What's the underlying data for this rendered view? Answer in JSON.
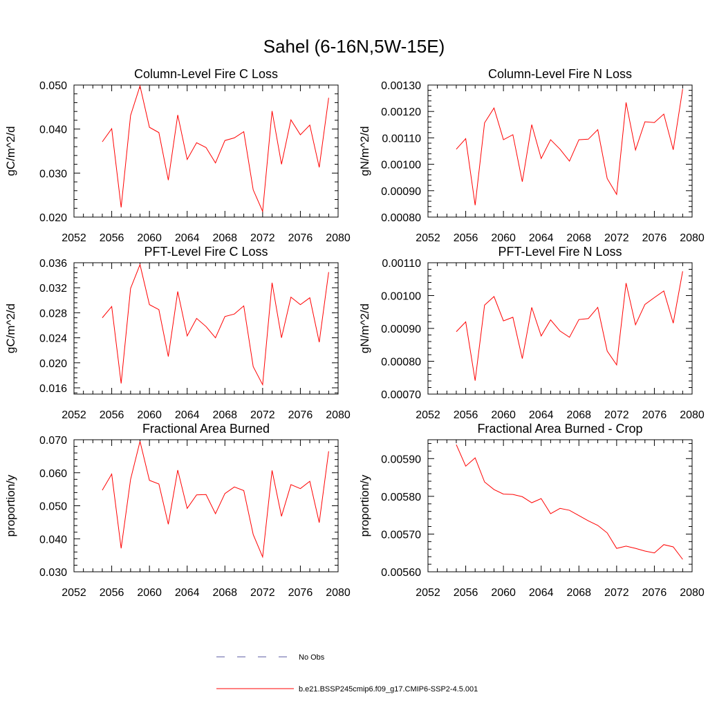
{
  "figure": {
    "title": "Sahel (6-16N,5W-15E)",
    "line_color": "#ff0000",
    "obs_color": "#5a5aa0"
  },
  "legend": {
    "items": [
      {
        "label": "No Obs",
        "style": "dashed",
        "color": "#5a5aa0"
      },
      {
        "label": "b.e21.BSSP245cmip6.f09_g17.CMIP6-SSP2-4.5.001",
        "style": "solid",
        "color": "#ff0000"
      }
    ]
  },
  "chart_data": [
    {
      "type": "line",
      "title": "Column-Level Fire C Loss",
      "ylabel": "gC/m^2/d",
      "xlim": [
        2052,
        2080
      ],
      "x_ticks": [
        "2052",
        "2056",
        "2060",
        "2064",
        "2068",
        "2072",
        "2076",
        "2080"
      ],
      "ylim": [
        0.02,
        0.05
      ],
      "y_ticks": [
        "0.020",
        "0.030",
        "0.040",
        "0.050"
      ],
      "x": [
        2055,
        2056,
        2057,
        2058,
        2059,
        2060,
        2061,
        2062,
        2063,
        2064,
        2065,
        2066,
        2067,
        2068,
        2069,
        2070,
        2071,
        2072,
        2073,
        2074,
        2075,
        2076,
        2077,
        2078,
        2079
      ],
      "series": [
        {
          "values": [
            0.0371,
            0.0401,
            0.0222,
            0.0431,
            0.0498,
            0.0404,
            0.0392,
            0.0284,
            0.0432,
            0.0331,
            0.0369,
            0.0358,
            0.0323,
            0.0374,
            0.038,
            0.0394,
            0.0262,
            0.0213,
            0.0441,
            0.032,
            0.0421,
            0.0387,
            0.0409,
            0.0313,
            0.0471
          ]
        }
      ]
    },
    {
      "type": "line",
      "title": "Column-Level Fire N Loss",
      "ylabel": "gN/m^2/d",
      "xlim": [
        2052,
        2080
      ],
      "x_ticks": [
        "2052",
        "2056",
        "2060",
        "2064",
        "2068",
        "2072",
        "2076",
        "2080"
      ],
      "ylim": [
        0.0008,
        0.0013
      ],
      "y_ticks": [
        "0.00080",
        "0.00090",
        "0.00100",
        "0.00110",
        "0.00120",
        "0.00130"
      ],
      "x": [
        2055,
        2056,
        2057,
        2058,
        2059,
        2060,
        2061,
        2062,
        2063,
        2064,
        2065,
        2066,
        2067,
        2068,
        2069,
        2070,
        2071,
        2072,
        2073,
        2074,
        2075,
        2076,
        2077,
        2078,
        2079
      ],
      "series": [
        {
          "values": [
            0.001057,
            0.001097,
            0.000845,
            0.001157,
            0.001213,
            0.001093,
            0.001112,
            0.000934,
            0.00115,
            0.001022,
            0.001093,
            0.001057,
            0.001012,
            0.001093,
            0.001095,
            0.001131,
            0.000946,
            0.000886,
            0.001234,
            0.001054,
            0.001161,
            0.001158,
            0.00119,
            0.001055,
            0.001285
          ]
        }
      ]
    },
    {
      "type": "line",
      "title": "PFT-Level Fire C Loss",
      "ylabel": "gC/m^2/d",
      "xlim": [
        2052,
        2080
      ],
      "x_ticks": [
        "2052",
        "2056",
        "2060",
        "2064",
        "2068",
        "2072",
        "2076",
        "2080"
      ],
      "ylim": [
        0.015,
        0.036
      ],
      "y_ticks": [
        "0.016",
        "0.020",
        "0.024",
        "0.028",
        "0.032",
        "0.036"
      ],
      "x": [
        2055,
        2056,
        2057,
        2058,
        2059,
        2060,
        2061,
        2062,
        2063,
        2064,
        2065,
        2066,
        2067,
        2068,
        2069,
        2070,
        2071,
        2072,
        2073,
        2074,
        2075,
        2076,
        2077,
        2078,
        2079
      ],
      "series": [
        {
          "values": [
            0.0272,
            0.029,
            0.0167,
            0.0319,
            0.0357,
            0.0293,
            0.0285,
            0.021,
            0.0314,
            0.0243,
            0.0271,
            0.0258,
            0.024,
            0.0274,
            0.0278,
            0.0291,
            0.0194,
            0.0165,
            0.0328,
            0.024,
            0.0305,
            0.0293,
            0.0304,
            0.0233,
            0.0345
          ]
        }
      ]
    },
    {
      "type": "line",
      "title": "PFT-Level Fire N Loss",
      "ylabel": "gN/m^2/d",
      "xlim": [
        2052,
        2080
      ],
      "x_ticks": [
        "2052",
        "2056",
        "2060",
        "2064",
        "2068",
        "2072",
        "2076",
        "2080"
      ],
      "ylim": [
        0.0007,
        0.0011
      ],
      "y_ticks": [
        "0.00070",
        "0.00080",
        "0.00090",
        "0.00100",
        "0.00110"
      ],
      "x": [
        2055,
        2056,
        2057,
        2058,
        2059,
        2060,
        2061,
        2062,
        2063,
        2064,
        2065,
        2066,
        2067,
        2068,
        2069,
        2070,
        2071,
        2072,
        2073,
        2074,
        2075,
        2076,
        2077,
        2078,
        2079
      ],
      "series": [
        {
          "values": [
            0.00089,
            0.00092,
            0.000741,
            0.000971,
            0.000997,
            0.000923,
            0.000934,
            0.000808,
            0.000964,
            0.000877,
            0.000926,
            0.000892,
            0.000873,
            0.000927,
            0.00093,
            0.000964,
            0.000831,
            0.000789,
            0.001038,
            0.000911,
            0.000973,
            0.000994,
            0.001014,
            0.000916,
            0.001074
          ]
        }
      ]
    },
    {
      "type": "line",
      "title": "Fractional Area Burned",
      "ylabel": "proportion/y",
      "xlim": [
        2052,
        2080
      ],
      "x_ticks": [
        "2052",
        "2056",
        "2060",
        "2064",
        "2068",
        "2072",
        "2076",
        "2080"
      ],
      "ylim": [
        0.03,
        0.07
      ],
      "y_ticks": [
        "0.030",
        "0.040",
        "0.050",
        "0.060",
        "0.070"
      ],
      "x": [
        2055,
        2056,
        2057,
        2058,
        2059,
        2060,
        2061,
        2062,
        2063,
        2064,
        2065,
        2066,
        2067,
        2068,
        2069,
        2070,
        2071,
        2072,
        2073,
        2074,
        2075,
        2076,
        2077,
        2078,
        2079
      ],
      "series": [
        {
          "values": [
            0.0547,
            0.0596,
            0.0371,
            0.058,
            0.0695,
            0.0577,
            0.0566,
            0.0444,
            0.0608,
            0.0492,
            0.0533,
            0.0534,
            0.0476,
            0.0537,
            0.0557,
            0.0546,
            0.0413,
            0.0345,
            0.0607,
            0.0468,
            0.0564,
            0.0552,
            0.0574,
            0.0449,
            0.0665
          ]
        }
      ]
    },
    {
      "type": "line",
      "title": "Fractional Area Burned - Crop",
      "ylabel": "proportion/y",
      "xlim": [
        2052,
        2080
      ],
      "x_ticks": [
        "2052",
        "2056",
        "2060",
        "2064",
        "2068",
        "2072",
        "2076",
        "2080"
      ],
      "ylim": [
        0.0056,
        0.00595
      ],
      "y_ticks": [
        "0.00560",
        "0.00570",
        "0.00580",
        "0.00590"
      ],
      "x": [
        2055,
        2056,
        2057,
        2058,
        2059,
        2060,
        2061,
        2062,
        2063,
        2064,
        2065,
        2066,
        2067,
        2068,
        2069,
        2070,
        2071,
        2072,
        2073,
        2074,
        2075,
        2076,
        2077,
        2078,
        2079
      ],
      "series": [
        {
          "values": [
            0.005937,
            0.00588,
            0.005902,
            0.005838,
            0.005818,
            0.005806,
            0.005805,
            0.005799,
            0.005783,
            0.005794,
            0.005754,
            0.005768,
            0.005763,
            0.005749,
            0.005735,
            0.005723,
            0.005703,
            0.005662,
            0.005668,
            0.005662,
            0.005655,
            0.00565,
            0.005672,
            0.005666,
            0.005633
          ]
        }
      ]
    }
  ]
}
